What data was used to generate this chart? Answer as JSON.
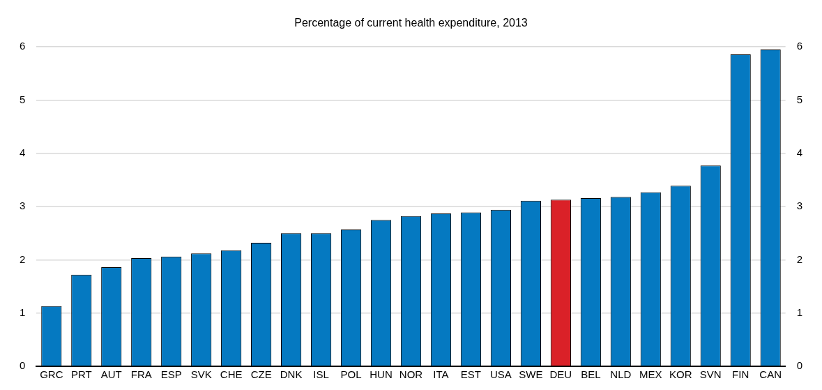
{
  "chart_data": {
    "type": "bar",
    "title": "Percentage of current health expenditure, 2013",
    "categories": [
      "GRC",
      "PRT",
      "AUT",
      "FRA",
      "ESP",
      "SVK",
      "CHE",
      "CZE",
      "DNK",
      "ISL",
      "POL",
      "HUN",
      "NOR",
      "ITA",
      "EST",
      "USA",
      "SWE",
      "DEU",
      "BEL",
      "NLD",
      "MEX",
      "KOR",
      "SVN",
      "FIN",
      "CAN"
    ],
    "values": [
      1.13,
      1.72,
      1.86,
      2.03,
      2.06,
      2.12,
      2.18,
      2.32,
      2.5,
      2.5,
      2.57,
      2.75,
      2.82,
      2.87,
      2.89,
      2.94,
      3.11,
      3.13,
      3.16,
      3.18,
      3.27,
      3.39,
      3.77,
      5.86,
      5.95
    ],
    "colors": [
      "#0579c1",
      "#0579c1",
      "#0579c1",
      "#0579c1",
      "#0579c1",
      "#0579c1",
      "#0579c1",
      "#0579c1",
      "#0579c1",
      "#0579c1",
      "#0579c1",
      "#0579c1",
      "#0579c1",
      "#0579c1",
      "#0579c1",
      "#0579c1",
      "#0579c1",
      "#da2128",
      "#0579c1",
      "#0579c1",
      "#0579c1",
      "#0579c1",
      "#0579c1",
      "#0579c1",
      "#0579c1"
    ],
    "ylim": [
      0,
      6
    ],
    "yticks": [
      0,
      1,
      2,
      3,
      4,
      5,
      6
    ],
    "y2lim": [
      0,
      6
    ],
    "y2ticks": [
      0,
      1,
      2,
      3,
      4,
      5,
      6
    ],
    "grid": "y",
    "legend": false
  }
}
